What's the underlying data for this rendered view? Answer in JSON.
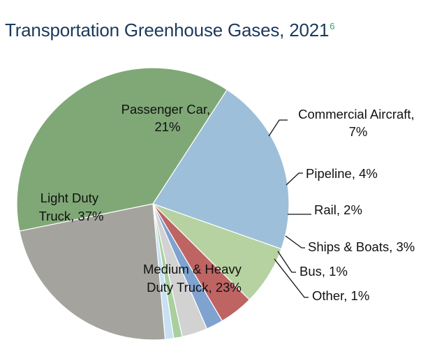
{
  "title": "Transportation Greenhouse Gases, 2021",
  "title_superscript": "6",
  "chart_data": {
    "type": "pie",
    "title": "Transportation Greenhouse Gases, 2021",
    "slices": [
      {
        "label": "Passenger Car,",
        "pct_label": "21%",
        "value": 21,
        "color": "#9dbfda"
      },
      {
        "label": "Commercial Aircraft,",
        "pct_label": "7%",
        "value": 7,
        "color": "#b5d2a0"
      },
      {
        "label": "Pipeline,",
        "pct_label": "4%",
        "value": 4,
        "color": "#be6463"
      },
      {
        "label": "Rail,",
        "pct_label": "2%",
        "value": 2,
        "color": "#7fa2cf"
      },
      {
        "label": "Ships & Boats,",
        "pct_label": "3%",
        "value": 3,
        "color": "#d2d2d2"
      },
      {
        "label": "Bus,",
        "pct_label": "1%",
        "value": 1,
        "color": "#a9cf9f"
      },
      {
        "label": "Other,",
        "pct_label": "1%",
        "value": 1,
        "color": "#c9e0f2"
      },
      {
        "label": "Medium & Heavy Duty Truck,",
        "pct_label": "23%",
        "value": 23,
        "color": "#a4a39d"
      },
      {
        "label": "Light Duty Truck,",
        "pct_label": "37%",
        "value": 37,
        "color": "#7fa876"
      }
    ]
  }
}
